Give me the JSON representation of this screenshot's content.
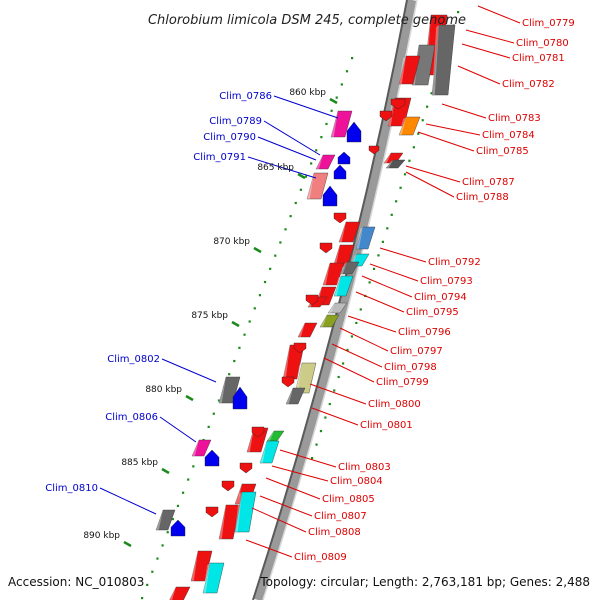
{
  "title": "Chlorobium limicola DSM 245, complete genome",
  "accession": "Accession: NC_010803",
  "topology": "Topology: circular; Length: 2,763,181 bp; Genes: 2,488",
  "colors": {
    "forward_label": "#0000cc",
    "reverse_label": "#dd0000",
    "backbone": "#8a8a8a",
    "tick": "#1a8a1a"
  },
  "ticks": [
    "860 kbp",
    "865 kbp",
    "870 kbp",
    "875 kbp",
    "880 kbp",
    "885 kbp",
    "890 kbp"
  ],
  "forward_genes": [
    "Clim_0786",
    "Clim_0789",
    "Clim_0790",
    "Clim_0791",
    "Clim_0802",
    "Clim_0806",
    "Clim_0810"
  ],
  "reverse_genes": [
    "Clim_0779",
    "Clim_0780",
    "Clim_0781",
    "Clim_0782",
    "Clim_0783",
    "Clim_0784",
    "Clim_0785",
    "Clim_0787",
    "Clim_0788",
    "Clim_0792",
    "Clim_0793",
    "Clim_0794",
    "Clim_0795",
    "Clim_0796",
    "Clim_0797",
    "Clim_0798",
    "Clim_0799",
    "Clim_0800",
    "Clim_0801",
    "Clim_0803",
    "Clim_0804",
    "Clim_0805",
    "Clim_0807",
    "Clim_0808",
    "Clim_0809"
  ]
}
